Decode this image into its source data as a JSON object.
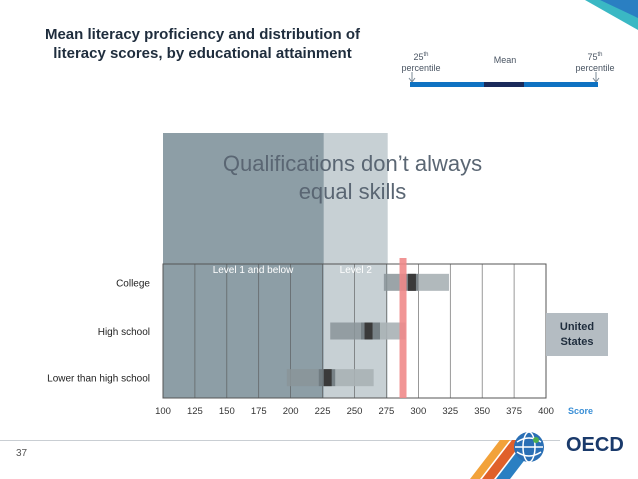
{
  "slide": {
    "title": "Mean literacy proficiency and distribution of\nliteracy scores, by educational attainment",
    "headline": "Qualifications don’t always\nequal skills",
    "country_badge": "United\nStates",
    "page_number": "37",
    "logo_text": "OECD"
  },
  "legend": {
    "p25_num": "25",
    "p25_sup": "th",
    "p25_word": "percentile",
    "mean": "Mean",
    "p75_num": "75",
    "p75_sup": "th",
    "p75_word": "percentile",
    "colors": {
      "bar": "#0f72c2",
      "mean": "#1a2a5a"
    }
  },
  "chart_data": {
    "type": "bar",
    "subtype": "percentile-distribution",
    "categories": [
      "College",
      "High school",
      "Lower than high school"
    ],
    "x_axis": {
      "min": 100,
      "max": 400,
      "ticks": [
        100,
        125,
        150,
        175,
        200,
        225,
        250,
        275,
        300,
        325,
        350,
        375,
        400
      ],
      "label": "Score",
      "grid": true
    },
    "bands": [
      {
        "label": "Level 1 and below",
        "from": 100,
        "to": 226,
        "color": "#8d9ea6"
      },
      {
        "label": "Level 2",
        "from": 226,
        "to": 276,
        "color": "#c7d0d4"
      }
    ],
    "reference_line": {
      "value": 288,
      "color": "#f08a8a"
    },
    "series": [
      {
        "category": "College",
        "p5": 273,
        "p25": 286,
        "mean": 295,
        "p75": 300,
        "p95": 324
      },
      {
        "category": "High school",
        "p5": 231,
        "p25": 255,
        "mean": 261,
        "p75": 270,
        "p95": 290
      },
      {
        "category": "Lower than high school",
        "p5": 197,
        "p25": 222,
        "mean": 229,
        "p75": 235,
        "p95": 265
      }
    ]
  }
}
